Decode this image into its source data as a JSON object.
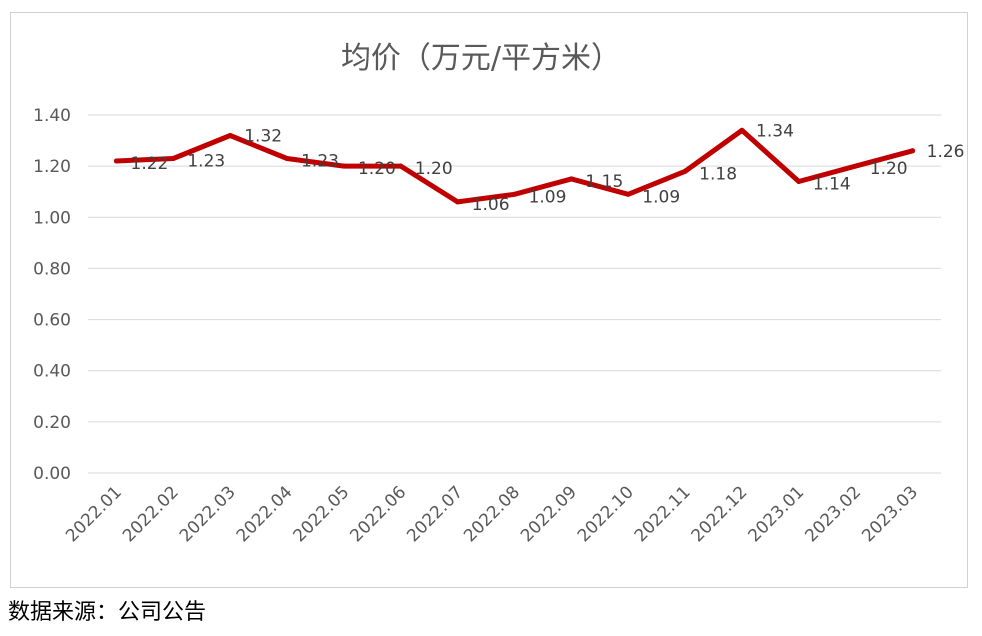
{
  "chart_data": {
    "type": "line",
    "title": "均价（万元/平方米）",
    "categories": [
      "2022.01",
      "2022.02",
      "2022.03",
      "2022.04",
      "2022.05",
      "2022.06",
      "2022.07",
      "2022.08",
      "2022.09",
      "2022.10",
      "2022.11",
      "2022.12",
      "2023.01",
      "2023.02",
      "2023.03"
    ],
    "series": [
      {
        "values": [
          1.22,
          1.23,
          1.32,
          1.23,
          1.2,
          1.2,
          1.06,
          1.09,
          1.15,
          1.09,
          1.18,
          1.34,
          1.14,
          1.2,
          1.26
        ]
      }
    ],
    "data_labels": [
      "1.22",
      "1.23",
      "1.32",
      "1.23",
      "1.20",
      "1.20",
      "1.06",
      "1.09",
      "1.15",
      "1.09",
      "1.18",
      "1.34",
      "1.14",
      "1.20",
      "1.26"
    ],
    "ylim": [
      0,
      1.4
    ],
    "yticks": [
      "0.00",
      "0.20",
      "0.40",
      "0.60",
      "0.80",
      "1.00",
      "1.20",
      "1.40"
    ],
    "grid": true,
    "legend": "none",
    "line_color": "#C00000"
  },
  "footer": {
    "source": "数据来源：公司公告"
  }
}
